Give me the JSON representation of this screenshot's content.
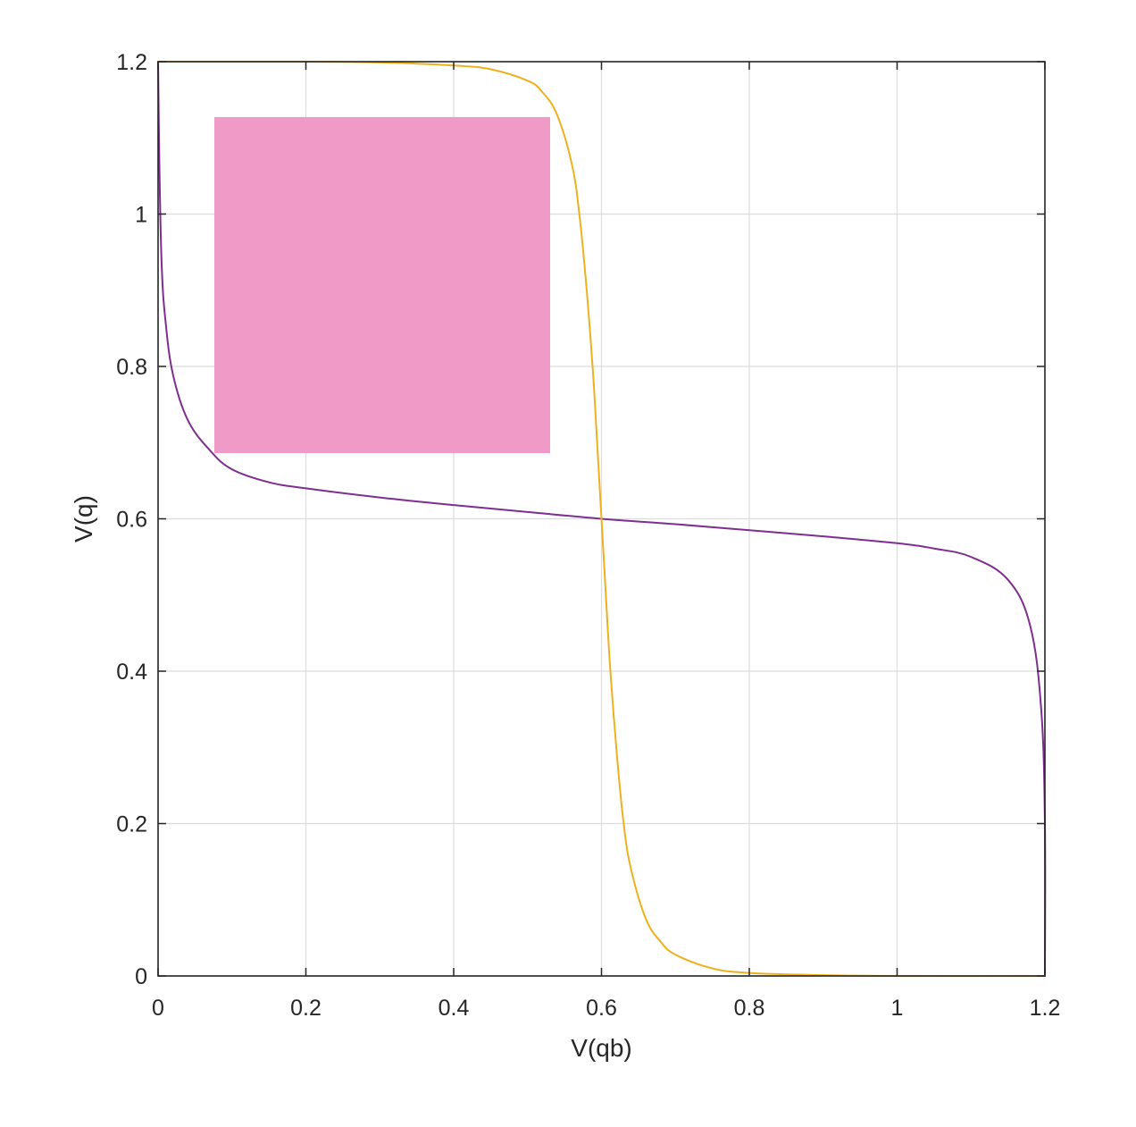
{
  "chart_data": {
    "type": "line",
    "title": "",
    "xlabel": "V(qb)",
    "ylabel": "V(q)",
    "xlim": [
      0,
      1.2
    ],
    "ylim": [
      0,
      1.2
    ],
    "xticks": [
      "0",
      "0.2",
      "0.4",
      "0.6",
      "0.8",
      "1",
      "1.2"
    ],
    "yticks": [
      "0",
      "0.2",
      "0.4",
      "0.6",
      "0.8",
      "1",
      "1.2"
    ],
    "xtick_values": [
      0,
      0.2,
      0.4,
      0.6,
      0.8,
      1.0,
      1.2
    ],
    "ytick_values": [
      0,
      0.2,
      0.4,
      0.6,
      0.8,
      1.0,
      1.2
    ],
    "grid": true,
    "series": [
      {
        "color": "#7E2F8E",
        "x": [
          0,
          0.002,
          0.005,
          0.01,
          0.02,
          0.04,
          0.07,
          0.1,
          0.15,
          0.2,
          0.3,
          0.4,
          0.5,
          0.6,
          0.7,
          0.8,
          0.9,
          1.0,
          1.05,
          1.1,
          1.15,
          1.18,
          1.195,
          1.2,
          1.2
        ],
        "y": [
          1.2,
          1.05,
          0.93,
          0.86,
          0.79,
          0.73,
          0.69,
          0.665,
          0.648,
          0.64,
          0.628,
          0.618,
          0.609,
          0.6,
          0.593,
          0.585,
          0.577,
          0.568,
          0.561,
          0.55,
          0.52,
          0.46,
          0.35,
          0.2,
          0.0
        ]
      },
      {
        "color": "#EDB120",
        "x": [
          0,
          0.1,
          0.2,
          0.3,
          0.4,
          0.45,
          0.5,
          0.52,
          0.54,
          0.56,
          0.57,
          0.58,
          0.59,
          0.6,
          0.61,
          0.62,
          0.63,
          0.64,
          0.66,
          0.68,
          0.7,
          0.75,
          0.8,
          0.9,
          1.0,
          1.2
        ],
        "y": [
          1.2,
          1.2,
          1.2,
          1.199,
          1.195,
          1.19,
          1.175,
          1.16,
          1.13,
          1.065,
          1.0,
          0.9,
          0.77,
          0.6,
          0.43,
          0.3,
          0.2,
          0.14,
          0.075,
          0.045,
          0.028,
          0.01,
          0.004,
          0.001,
          0.0,
          0.0
        ]
      }
    ]
  }
}
